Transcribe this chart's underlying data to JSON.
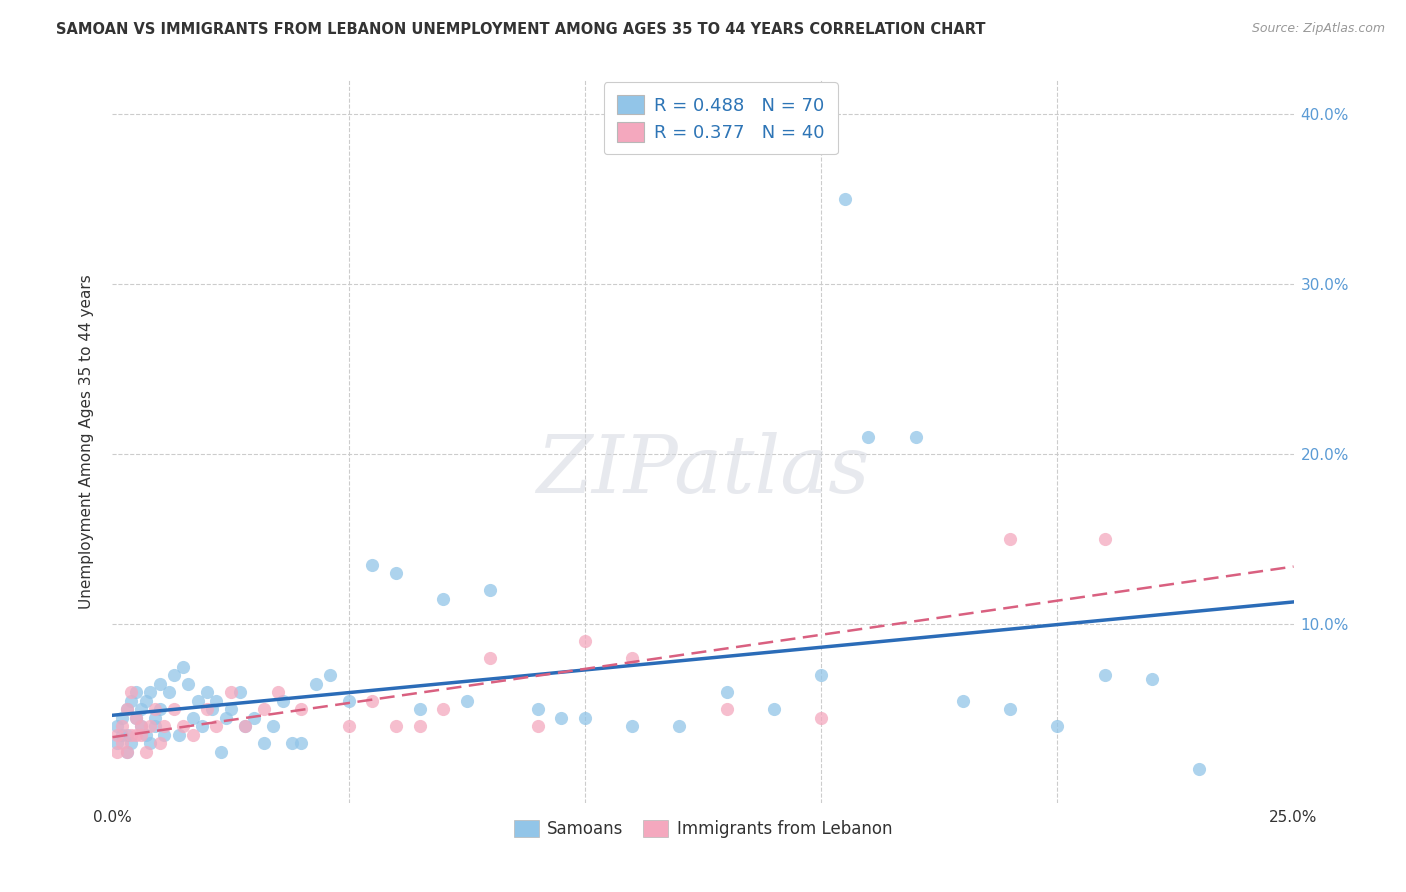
{
  "title": "SAMOAN VS IMMIGRANTS FROM LEBANON UNEMPLOYMENT AMONG AGES 35 TO 44 YEARS CORRELATION CHART",
  "source": "Source: ZipAtlas.com",
  "ylabel": "Unemployment Among Ages 35 to 44 years",
  "xlim": [
    0.0,
    0.25
  ],
  "ylim": [
    -0.005,
    0.42
  ],
  "x_ticks": [
    0.0,
    0.05,
    0.1,
    0.15,
    0.2,
    0.25
  ],
  "x_tick_labels": [
    "0.0%",
    "",
    "",
    "",
    "",
    "25.0%"
  ],
  "y_ticks": [
    0.0,
    0.1,
    0.2,
    0.3,
    0.4
  ],
  "y_tick_labels_right": [
    "",
    "10.0%",
    "20.0%",
    "30.0%",
    "40.0%"
  ],
  "legend_label1": "Samoans",
  "legend_label2": "Immigrants from Lebanon",
  "R1": 0.488,
  "N1": 70,
  "R2": 0.377,
  "N2": 40,
  "color1": "#92C5E8",
  "color2": "#F4A8BE",
  "line_color1": "#2B6CB8",
  "line_color2": "#D96080",
  "background_color": "#ffffff",
  "grid_color": "#cccccc",
  "text_color": "#333333",
  "axis_tick_color": "#5B9BD5",
  "legend_text_color": "#2E75B6",
  "watermark_text": "ZIPatlas",
  "samoans_x": [
    0.001,
    0.001,
    0.002,
    0.002,
    0.003,
    0.003,
    0.003,
    0.004,
    0.004,
    0.005,
    0.005,
    0.006,
    0.006,
    0.007,
    0.007,
    0.008,
    0.008,
    0.009,
    0.009,
    0.01,
    0.01,
    0.011,
    0.012,
    0.013,
    0.014,
    0.015,
    0.016,
    0.017,
    0.018,
    0.019,
    0.02,
    0.021,
    0.022,
    0.023,
    0.024,
    0.025,
    0.027,
    0.028,
    0.03,
    0.032,
    0.034,
    0.036,
    0.038,
    0.04,
    0.043,
    0.046,
    0.05,
    0.055,
    0.06,
    0.065,
    0.07,
    0.075,
    0.08,
    0.09,
    0.095,
    0.1,
    0.11,
    0.12,
    0.13,
    0.14,
    0.15,
    0.16,
    0.17,
    0.18,
    0.19,
    0.2,
    0.21,
    0.22,
    0.23,
    0.155
  ],
  "samoans_y": [
    0.03,
    0.04,
    0.035,
    0.045,
    0.025,
    0.035,
    0.05,
    0.03,
    0.055,
    0.045,
    0.06,
    0.04,
    0.05,
    0.035,
    0.055,
    0.03,
    0.06,
    0.04,
    0.045,
    0.05,
    0.065,
    0.035,
    0.06,
    0.07,
    0.035,
    0.075,
    0.065,
    0.045,
    0.055,
    0.04,
    0.06,
    0.05,
    0.055,
    0.025,
    0.045,
    0.05,
    0.06,
    0.04,
    0.045,
    0.03,
    0.04,
    0.055,
    0.03,
    0.03,
    0.065,
    0.07,
    0.055,
    0.135,
    0.13,
    0.05,
    0.115,
    0.055,
    0.12,
    0.05,
    0.045,
    0.045,
    0.04,
    0.04,
    0.06,
    0.05,
    0.07,
    0.21,
    0.21,
    0.055,
    0.05,
    0.04,
    0.07,
    0.068,
    0.015,
    0.35
  ],
  "lebanon_x": [
    0.001,
    0.001,
    0.002,
    0.002,
    0.003,
    0.003,
    0.004,
    0.004,
    0.005,
    0.005,
    0.006,
    0.006,
    0.007,
    0.008,
    0.009,
    0.01,
    0.011,
    0.013,
    0.015,
    0.017,
    0.02,
    0.022,
    0.025,
    0.028,
    0.032,
    0.035,
    0.04,
    0.05,
    0.055,
    0.06,
    0.065,
    0.07,
    0.08,
    0.09,
    0.1,
    0.11,
    0.13,
    0.15,
    0.19,
    0.21
  ],
  "lebanon_y": [
    0.025,
    0.035,
    0.03,
    0.04,
    0.025,
    0.05,
    0.035,
    0.06,
    0.035,
    0.045,
    0.04,
    0.035,
    0.025,
    0.04,
    0.05,
    0.03,
    0.04,
    0.05,
    0.04,
    0.035,
    0.05,
    0.04,
    0.06,
    0.04,
    0.05,
    0.06,
    0.05,
    0.04,
    0.055,
    0.04,
    0.04,
    0.05,
    0.08,
    0.04,
    0.09,
    0.08,
    0.05,
    0.045,
    0.15,
    0.15
  ]
}
